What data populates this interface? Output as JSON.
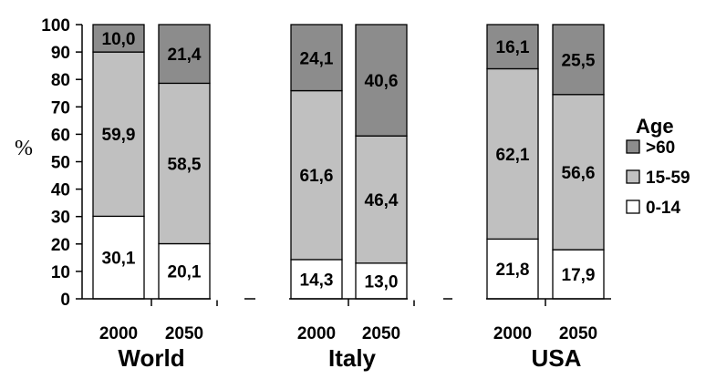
{
  "chart_data": {
    "type": "bar",
    "stacked": true,
    "ylabel": "%",
    "ylim": [
      0,
      100
    ],
    "yticks": [
      "0",
      "10",
      "20",
      "30",
      "40",
      "50",
      "60",
      "70",
      "80",
      "90",
      "100"
    ],
    "legend": {
      "title": "Age",
      "placement": "right",
      "entries": [
        {
          "name": ">60",
          "color": "#8c8c8c"
        },
        {
          "name": "15-59",
          "color": "#c0c0c0"
        },
        {
          "name": "0-14",
          "color": "#ffffff"
        }
      ]
    },
    "groups": [
      "World",
      "Italy",
      "USA"
    ],
    "categories": [
      {
        "group": "World",
        "year": "2000",
        "values": [
          30.1,
          59.9,
          10.0
        ],
        "labels": [
          "30,1",
          "59,9",
          "10,0"
        ]
      },
      {
        "group": "World",
        "year": "2050",
        "values": [
          20.1,
          58.5,
          21.4
        ],
        "labels": [
          "20,1",
          "58,5",
          "21,4"
        ]
      },
      {
        "group": "Italy",
        "year": "2000",
        "values": [
          14.3,
          61.6,
          24.1
        ],
        "labels": [
          "14,3",
          "61,6",
          "24,1"
        ]
      },
      {
        "group": "Italy",
        "year": "2050",
        "values": [
          13.0,
          46.4,
          40.6
        ],
        "labels": [
          "13,0",
          "46,4",
          "40,6"
        ]
      },
      {
        "group": "USA",
        "year": "2000",
        "values": [
          21.8,
          62.1,
          16.1
        ],
        "labels": [
          "21,8",
          "62,1",
          "16,1"
        ]
      },
      {
        "group": "USA",
        "year": "2050",
        "values": [
          17.9,
          56.6,
          25.5
        ],
        "labels": [
          "17,9",
          "56,6",
          "25,5"
        ]
      }
    ],
    "series_order": [
      "0-14",
      "15-59",
      ">60"
    ]
  }
}
